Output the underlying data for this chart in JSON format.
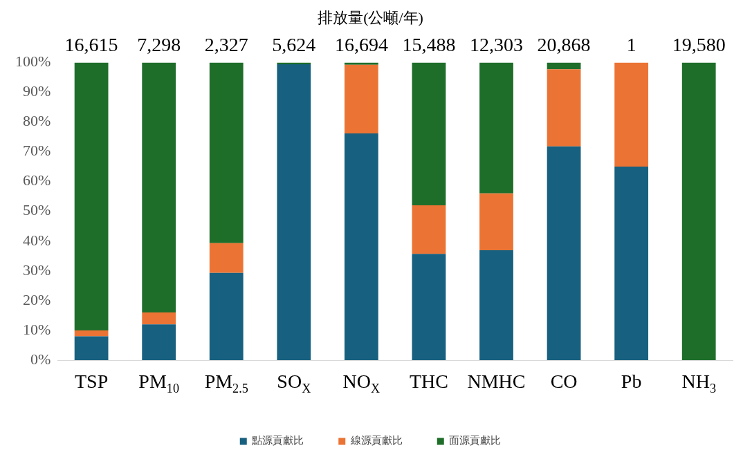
{
  "chart_data": {
    "type": "bar",
    "stacked": true,
    "title": "排放量(公噸/年)",
    "categories": [
      "TSP",
      "PM$_{10}$",
      "PM$_{2.5}$",
      "SO$_{X}$",
      "NO$_{X}$",
      "THC",
      "NMHC",
      "CO",
      "Pb",
      "NH$_{3}$"
    ],
    "series": [
      {
        "name": "點源貢獻比",
        "color": "#17607f",
        "values": [
          8,
          12,
          29.3,
          99.4,
          76.2,
          35.7,
          36.9,
          71.8,
          65,
          0
        ]
      },
      {
        "name": "線源貢獻比",
        "color": "#eb7434",
        "values": [
          2,
          4,
          10,
          0,
          23,
          16.3,
          19.1,
          25.9,
          35,
          0
        ]
      },
      {
        "name": "面源貢獻比",
        "color": "#1e6e2a",
        "values": [
          90,
          84,
          60.7,
          0.6,
          0.8,
          48,
          44,
          2.3,
          0,
          100
        ]
      }
    ],
    "ylim": [
      0,
      100
    ],
    "yticks": [
      {
        "value": 0,
        "label": "0%"
      },
      {
        "value": 10,
        "label": "10%"
      },
      {
        "value": 20,
        "label": "20%"
      },
      {
        "value": 30,
        "label": "30%"
      },
      {
        "value": 40,
        "label": "40%"
      },
      {
        "value": 50,
        "label": "50%"
      },
      {
        "value": 60,
        "label": "60%"
      },
      {
        "value": 70,
        "label": "70%"
      },
      {
        "value": 80,
        "label": "80%"
      },
      {
        "value": 90,
        "label": "90%"
      },
      {
        "value": 100,
        "label": "100%"
      }
    ],
    "grid": false,
    "legend": "bottom",
    "annotations": [
      "16,615",
      "7,298",
      "2,327",
      "5,624",
      "16,694",
      "15,488",
      "12,303",
      "20,868",
      "1",
      "19,580"
    ]
  }
}
